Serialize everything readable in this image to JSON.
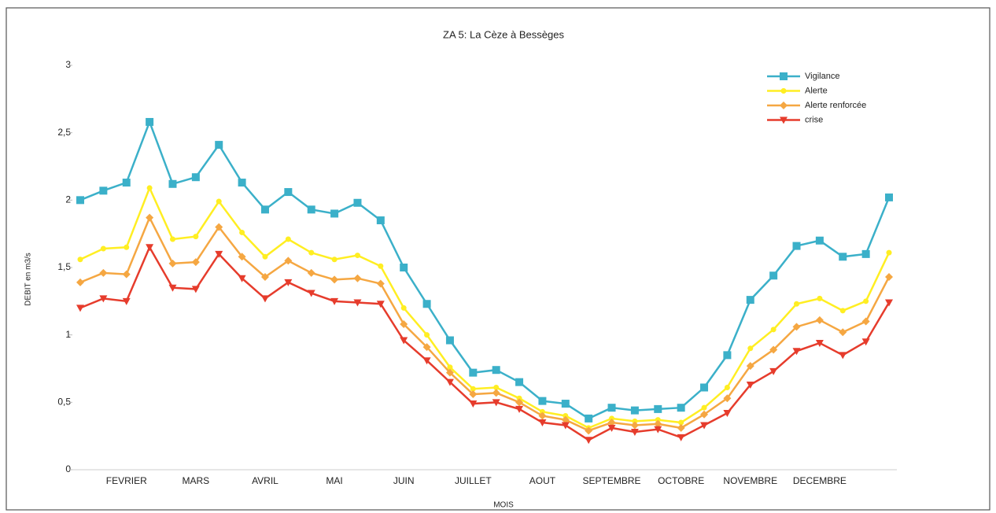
{
  "chart_data": {
    "type": "line",
    "title": "ZA 5: La Cèze à Bessèges",
    "x_label": "MOIS",
    "y_label": "DEBIT en m3/s",
    "categories": [
      null,
      null,
      "FEVRIER",
      null,
      null,
      "MARS",
      null,
      null,
      "AVRIL",
      null,
      null,
      "MAI",
      null,
      null,
      "JUIN",
      null,
      null,
      "JUILLET",
      null,
      null,
      "AOUT",
      null,
      null,
      "SEPTEMBRE",
      null,
      null,
      "OCTOBRE",
      null,
      null,
      "NOVEMBRE",
      null,
      null,
      "DECEMBRE",
      null,
      null,
      null
    ],
    "series": [
      {
        "name": "Vigilance",
        "color": "#3bb0c9",
        "marker": "square",
        "values": [
          2.0,
          2.07,
          2.13,
          2.58,
          2.12,
          2.17,
          2.41,
          2.13,
          1.93,
          2.06,
          1.93,
          1.9,
          1.98,
          1.85,
          1.5,
          1.23,
          0.96,
          0.72,
          0.74,
          0.65,
          0.51,
          0.49,
          0.38,
          0.46,
          0.44,
          0.45,
          0.46,
          0.61,
          0.85,
          1.26,
          1.44,
          1.66,
          1.7,
          1.58,
          1.6,
          2.02
        ]
      },
      {
        "name": "Alerte",
        "color": "#ffee22",
        "marker": "circle",
        "values": [
          1.56,
          1.64,
          1.65,
          2.09,
          1.71,
          1.73,
          1.99,
          1.76,
          1.58,
          1.71,
          1.61,
          1.56,
          1.59,
          1.51,
          1.2,
          1.0,
          0.76,
          0.6,
          0.61,
          0.53,
          0.43,
          0.4,
          0.31,
          0.38,
          0.36,
          0.37,
          0.35,
          0.46,
          0.61,
          0.9,
          1.04,
          1.23,
          1.27,
          1.18,
          1.25,
          1.61
        ]
      },
      {
        "name": "Alerte renforcée",
        "color": "#f5a742",
        "marker": "diamond",
        "values": [
          1.39,
          1.46,
          1.45,
          1.87,
          1.53,
          1.54,
          1.8,
          1.58,
          1.43,
          1.55,
          1.46,
          1.41,
          1.42,
          1.38,
          1.08,
          0.91,
          0.72,
          0.56,
          0.57,
          0.5,
          0.4,
          0.37,
          0.29,
          0.35,
          0.33,
          0.34,
          0.31,
          0.41,
          0.53,
          0.77,
          0.89,
          1.06,
          1.11,
          1.02,
          1.1,
          1.43
        ]
      },
      {
        "name": "crise",
        "color": "#e63c2c",
        "marker": "triangle",
        "values": [
          1.2,
          1.27,
          1.25,
          1.65,
          1.35,
          1.34,
          1.6,
          1.42,
          1.27,
          1.39,
          1.31,
          1.25,
          1.24,
          1.23,
          0.96,
          0.81,
          0.65,
          0.49,
          0.5,
          0.45,
          0.35,
          0.33,
          0.22,
          0.31,
          0.28,
          0.3,
          0.24,
          0.33,
          0.42,
          0.63,
          0.73,
          0.88,
          0.94,
          0.85,
          0.95,
          1.24
        ]
      }
    ],
    "ylim": [
      0,
      3
    ],
    "yticks": [
      0,
      {
        "value": 0.5,
        "label": "0,5"
      },
      1,
      {
        "value": 1.5,
        "label": "1,5"
      },
      2,
      {
        "value": 2.5,
        "label": "2,5"
      },
      3
    ],
    "grid": false,
    "legend": "top-right"
  }
}
